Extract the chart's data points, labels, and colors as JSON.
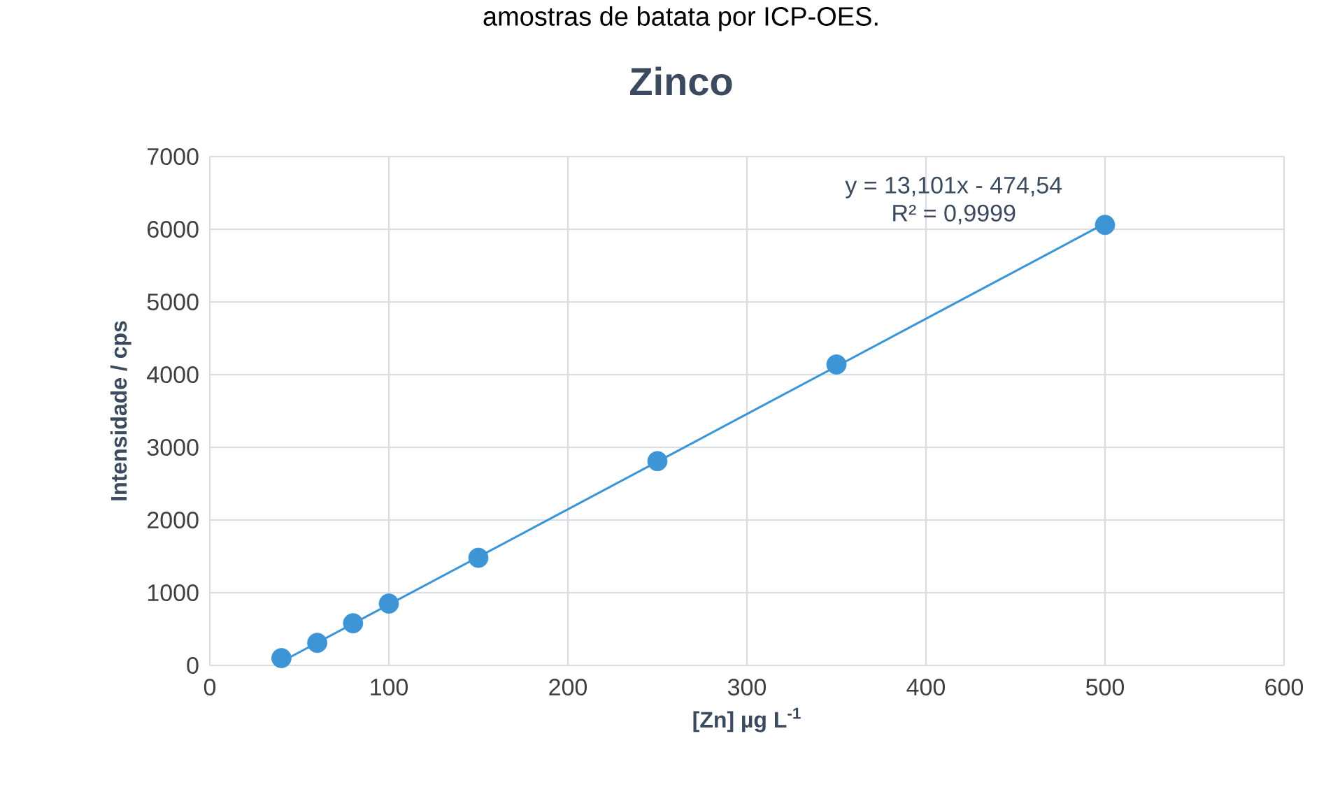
{
  "chart_data": {
    "type": "scatter",
    "title": "Zinco",
    "xlabel": "[Zn] µg L$^{-1}$",
    "ylabel": "Intensidade / cps",
    "annotations": [
      "amostras de batata por ICP-OES.",
      "y = 13,101x - 474,54",
      "R² = 0,9999"
    ],
    "x": [
      40,
      60,
      80,
      100,
      150,
      250,
      350,
      500
    ],
    "series": [
      {
        "color": "#3d95d5",
        "values": [
          100,
          310,
          580,
          850,
          1480,
          2810,
          4140,
          6060
        ]
      },
      {
        "type": "line",
        "marker": "none",
        "color": "#3a96d6",
        "x": [
          40,
          500
        ],
        "values": [
          50,
          6080
        ]
      }
    ],
    "xlim": [
      0,
      600
    ],
    "xticks": [
      0,
      100,
      200,
      300,
      400,
      500,
      600
    ],
    "ylim": [
      0,
      7000
    ],
    "yticks": [
      0,
      1000,
      2000,
      3000,
      4000,
      5000,
      6000,
      7000
    ],
    "grid": true,
    "marker": "circle"
  }
}
